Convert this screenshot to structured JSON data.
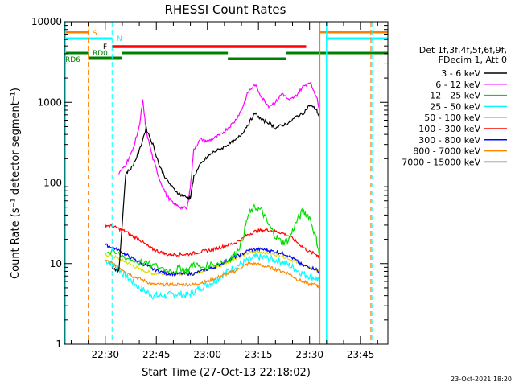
{
  "chart_data": {
    "type": "line",
    "title": "RHESSI Count Rates",
    "xlabel": "Start Time (27-Oct-13 22:18:02)",
    "ylabel": "Count Rate (s⁻¹ detector segment⁻¹)",
    "yscale": "log",
    "ylim": [
      1,
      10000
    ],
    "xlim_minutes_after_start": [
      0,
      95
    ],
    "x_tick_labels": [
      "22:30",
      "22:45",
      "23:00",
      "23:15",
      "23:30",
      "23:45"
    ],
    "x_tick_minutes": [
      12,
      27,
      42,
      57,
      72,
      87
    ],
    "y_tick_labels": [
      "1",
      "10",
      "100",
      "1000",
      "10000"
    ],
    "y_ticks": [
      1,
      10,
      100,
      1000,
      10000
    ],
    "grid": false,
    "legend_position": "right",
    "legend_header": [
      "Det 1f,3f,4f,5f,6f,9f,",
      "FDecim 1, Att 0"
    ],
    "timestamp": "23-Oct-2021 18:20",
    "flag_labels": [
      "S",
      "N",
      "F",
      "RD0",
      "RD6"
    ],
    "series": [
      {
        "name": "3 - 6 keV",
        "color": "#000000",
        "x": [
          14,
          16,
          18,
          20,
          22,
          24,
          26,
          28,
          30,
          32,
          34,
          36,
          37,
          38,
          40,
          42,
          44,
          46,
          48,
          50,
          52,
          54,
          56,
          58,
          60,
          62,
          64,
          66,
          68,
          70,
          72,
          74,
          75
        ],
        "y": [
          9,
          8,
          130,
          160,
          250,
          480,
          300,
          160,
          110,
          85,
          72,
          66,
          65,
          120,
          170,
          210,
          245,
          265,
          300,
          330,
          400,
          540,
          730,
          600,
          560,
          480,
          520,
          560,
          660,
          720,
          920,
          820,
          630
        ]
      },
      {
        "name": "6 - 12 keV",
        "color": "#ff00ff",
        "x": [
          16,
          18,
          20,
          22,
          23,
          24,
          26,
          28,
          30,
          32,
          34,
          36,
          37,
          38,
          40,
          42,
          44,
          46,
          48,
          50,
          52,
          54,
          56,
          58,
          60,
          62,
          64,
          66,
          68,
          70,
          72,
          74,
          75
        ],
        "y": [
          130,
          170,
          250,
          500,
          1050,
          450,
          200,
          110,
          70,
          55,
          50,
          48,
          90,
          260,
          350,
          330,
          360,
          400,
          480,
          580,
          800,
          1350,
          1650,
          1150,
          900,
          1000,
          1300,
          1050,
          1200,
          1550,
          1800,
          1200,
          800
        ]
      },
      {
        "name": "12 - 25 keV",
        "color": "#00dd00",
        "x": [
          12,
          16,
          20,
          24,
          28,
          32,
          34,
          36,
          38,
          40,
          44,
          48,
          50,
          52,
          54,
          56,
          58,
          60,
          62,
          64,
          66,
          68,
          70,
          72,
          74,
          75
        ],
        "y": [
          14,
          13,
          11,
          10,
          9,
          8,
          9,
          8,
          10,
          9,
          10,
          11,
          13,
          18,
          40,
          50,
          45,
          30,
          22,
          18,
          20,
          32,
          45,
          38,
          20,
          12
        ]
      },
      {
        "name": "25 - 50 keV",
        "color": "#00ffff",
        "x": [
          12,
          14,
          16,
          18,
          20,
          22,
          24,
          26,
          28,
          30,
          32,
          34,
          36,
          38,
          40,
          42,
          44,
          46,
          48,
          50,
          52,
          54,
          56,
          58,
          60,
          62,
          64,
          66,
          68,
          70,
          72,
          74,
          75
        ],
        "y": [
          11,
          10,
          8.5,
          7,
          6,
          5,
          4.5,
          4,
          4,
          4,
          4.2,
          4.2,
          4,
          4.5,
          5,
          5.5,
          6,
          7,
          8,
          9,
          10,
          11,
          12,
          12,
          11.5,
          11,
          10.5,
          9.5,
          8.5,
          7.5,
          7,
          6.5,
          6
        ]
      },
      {
        "name": "50 - 100 keV",
        "color": "#dddd00",
        "x": [
          12,
          14,
          16,
          18,
          20,
          22,
          24,
          26,
          28,
          30,
          32,
          34,
          36,
          38,
          40,
          42,
          44,
          46,
          48,
          50,
          52,
          54,
          56,
          58,
          60,
          62,
          64,
          66,
          68,
          70,
          72,
          74,
          75
        ],
        "y": [
          13,
          12.5,
          11.5,
          10.5,
          9.5,
          8.5,
          8,
          7.5,
          7.5,
          7.5,
          7.5,
          7.5,
          7.5,
          7.5,
          8,
          8.5,
          9,
          9.5,
          10.5,
          11.5,
          12.5,
          13.5,
          14,
          14,
          13.5,
          13,
          12.5,
          11.5,
          10.5,
          9.5,
          9,
          8.5,
          8
        ]
      },
      {
        "name": "100 - 300 keV",
        "color": "#ff0000",
        "x": [
          12,
          14,
          16,
          18,
          20,
          22,
          24,
          26,
          28,
          30,
          32,
          34,
          36,
          38,
          40,
          42,
          44,
          46,
          48,
          50,
          52,
          54,
          56,
          58,
          60,
          62,
          64,
          66,
          68,
          70,
          72,
          74,
          75
        ],
        "y": [
          30,
          29,
          27,
          25,
          22,
          20,
          17,
          15,
          14,
          13,
          13,
          13,
          13,
          13.5,
          14,
          14.5,
          15,
          16,
          17,
          18,
          20,
          23,
          25,
          26,
          26,
          25,
          24,
          22,
          19,
          16,
          14,
          13,
          12
        ]
      },
      {
        "name": "300 - 800 keV",
        "color": "#0000ff",
        "x": [
          12,
          14,
          16,
          18,
          20,
          22,
          24,
          26,
          28,
          30,
          32,
          34,
          36,
          38,
          40,
          42,
          44,
          46,
          48,
          50,
          52,
          54,
          56,
          58,
          60,
          62,
          64,
          66,
          68,
          70,
          72,
          74,
          75
        ],
        "y": [
          17,
          16,
          14.5,
          13,
          11.5,
          10.5,
          9.5,
          8.5,
          8,
          7.5,
          7.5,
          7.5,
          7.5,
          7.5,
          8,
          8.5,
          9,
          10,
          11,
          12,
          13,
          14.5,
          15,
          15,
          14.5,
          14,
          13.5,
          12.5,
          11,
          9.5,
          9,
          8.5,
          7.5
        ]
      },
      {
        "name": "800 - 7000 keV",
        "color": "#ff8800",
        "x": [
          12,
          14,
          16,
          18,
          20,
          22,
          24,
          26,
          28,
          30,
          32,
          34,
          36,
          38,
          40,
          42,
          44,
          46,
          48,
          50,
          52,
          54,
          56,
          58,
          60,
          62,
          64,
          66,
          68,
          70,
          72,
          74,
          75
        ],
        "y": [
          11,
          10,
          9,
          8,
          7,
          6.5,
          6,
          5.5,
          5.5,
          5.5,
          5.5,
          5.5,
          5.5,
          5.5,
          5.8,
          6,
          6.5,
          7,
          7.5,
          8,
          9,
          10,
          10,
          9.5,
          9,
          8.5,
          8,
          7.5,
          6.5,
          6,
          5.5,
          5.5,
          5
        ]
      },
      {
        "name": "7000 - 15000 keV",
        "color": "#6b5a1e",
        "x": [],
        "y": []
      }
    ]
  }
}
